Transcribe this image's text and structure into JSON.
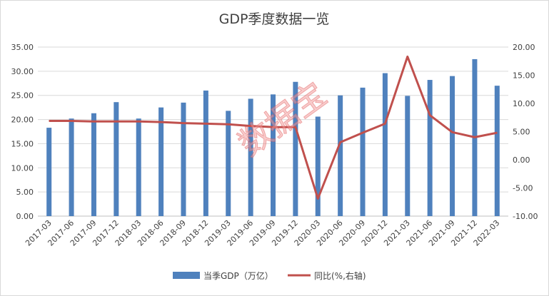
{
  "chart_data": {
    "type": "bar",
    "title": "GDP季度数据一览",
    "categories": [
      "2017-03",
      "2017-06",
      "2017-09",
      "2017-12",
      "2018-03",
      "2018-06",
      "2018-09",
      "2018-12",
      "2019-03",
      "2019-06",
      "2019-09",
      "2019-12",
      "2020-03",
      "2020-06",
      "2020-09",
      "2020-12",
      "2021-03",
      "2021-06",
      "2021-09",
      "2021-12",
      "2022-03"
    ],
    "series": [
      {
        "name": "当季GDP（万亿）",
        "type": "bar",
        "axis": "left",
        "color": "#4f81bd",
        "values": [
          18.3,
          20.2,
          21.3,
          23.6,
          20.2,
          22.5,
          23.5,
          26.0,
          21.8,
          24.3,
          25.2,
          27.8,
          20.6,
          25.0,
          26.6,
          29.6,
          24.9,
          28.2,
          29.0,
          32.5,
          27.0
        ]
      },
      {
        "name": "同比(%,右轴)",
        "type": "line",
        "axis": "right",
        "color": "#c0504d",
        "values": [
          6.9,
          6.9,
          6.8,
          6.8,
          6.8,
          6.7,
          6.5,
          6.4,
          6.3,
          6.0,
          5.8,
          5.8,
          -6.9,
          3.1,
          4.8,
          6.4,
          18.3,
          7.9,
          4.9,
          4.0,
          4.8
        ]
      }
    ],
    "y_left": {
      "min": 0,
      "max": 35,
      "step": 5,
      "labels": [
        "0.00",
        "5.00",
        "10.00",
        "15.00",
        "20.00",
        "25.00",
        "30.00",
        "35.00"
      ]
    },
    "y_right": {
      "min": -10,
      "max": 20,
      "step": 5,
      "labels": [
        "-10.00",
        "-5.00",
        "0.00",
        "5.00",
        "10.00",
        "15.00",
        "20.00"
      ]
    },
    "grid": true,
    "legend_position": "bottom",
    "watermark": "数据宝"
  }
}
